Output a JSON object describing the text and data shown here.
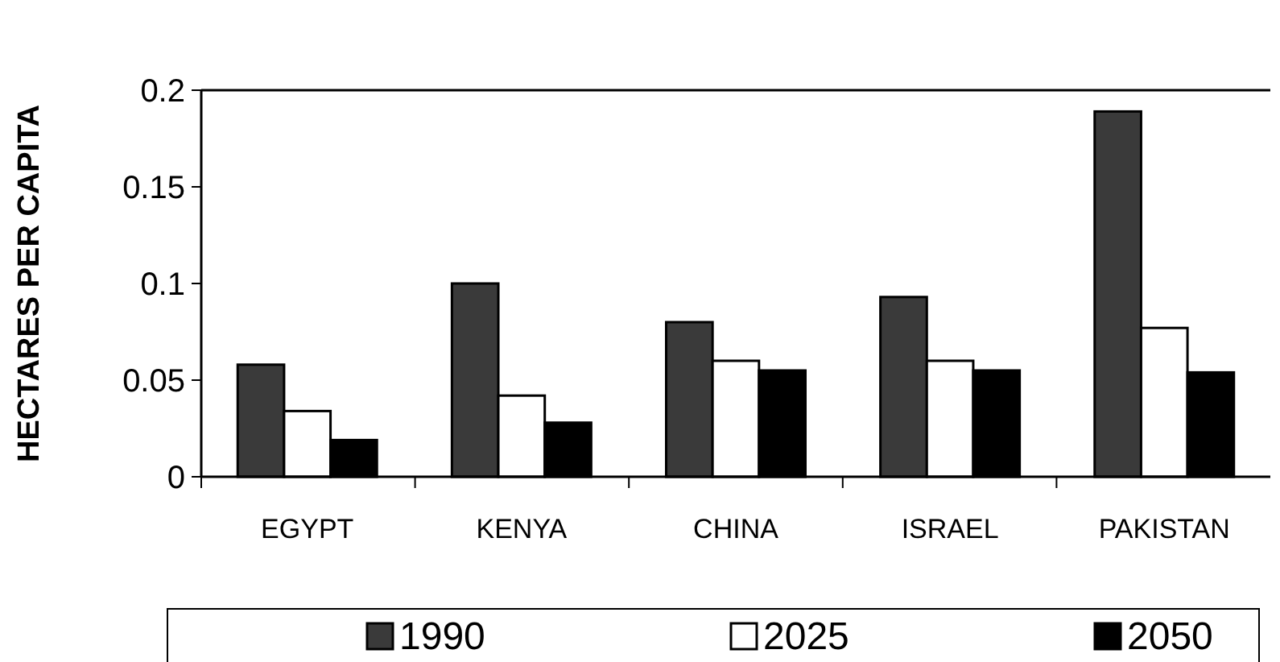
{
  "chart_data": {
    "type": "bar",
    "ylabel": "HECTARES PER CAPITA",
    "categories": [
      "EGYPT",
      "KENYA",
      "CHINA",
      "ISRAEL",
      "PAKISTAN"
    ],
    "series": [
      {
        "name": "1990",
        "color": "#3a3a3a",
        "values": [
          0.058,
          0.1,
          0.08,
          0.093,
          0.189
        ]
      },
      {
        "name": "2025",
        "color": "#ffffff",
        "values": [
          0.034,
          0.042,
          0.06,
          0.06,
          0.077
        ]
      },
      {
        "name": "2050",
        "color": "#000000",
        "values": [
          0.019,
          0.028,
          0.055,
          0.055,
          0.054
        ]
      }
    ],
    "ylim": [
      0,
      0.2
    ],
    "yticks": [
      0,
      0.05,
      0.1,
      0.15,
      0.2
    ],
    "grid": false,
    "legend": "bottom"
  }
}
